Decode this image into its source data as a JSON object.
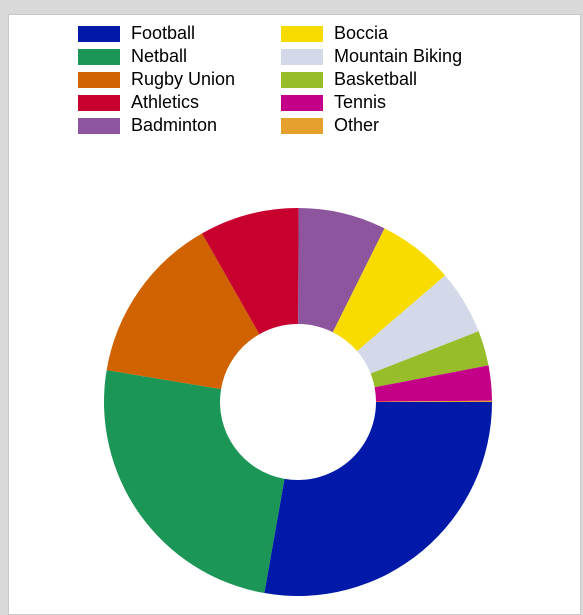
{
  "chart_data": {
    "type": "pie",
    "donut": true,
    "legend_position": "top",
    "categories": [
      "Football",
      "Netball",
      "Rugby Union",
      "Athletics",
      "Badminton",
      "Boccia",
      "Mountain Biking",
      "Basketball",
      "Tennis",
      "Other"
    ],
    "values": [
      28.5,
      25.5,
      14.5,
      8.5,
      7.5,
      6.5,
      5.5,
      3.0,
      3.0,
      0.1
    ],
    "colors": [
      "#0019a8",
      "#1b9656",
      "#d06200",
      "#c8002e",
      "#8d559d",
      "#f8dc00",
      "#d3d9e8",
      "#97bd2b",
      "#c40088",
      "#e6a02e"
    ]
  }
}
